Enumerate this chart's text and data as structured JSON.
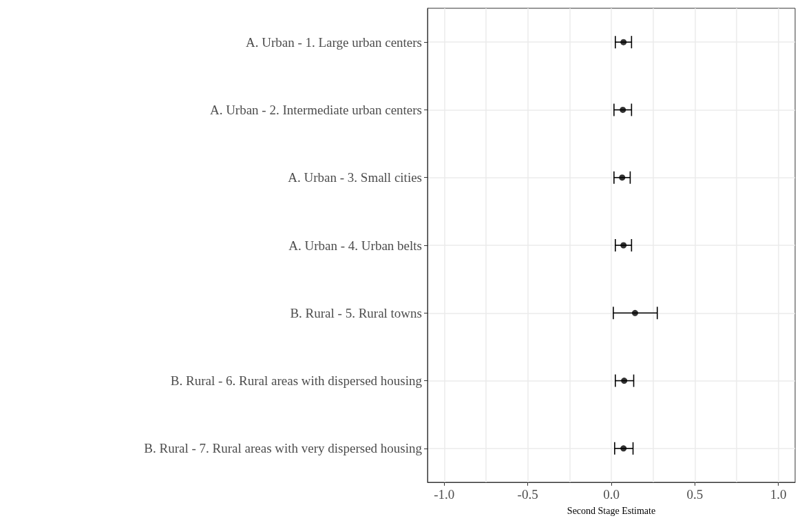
{
  "chart_data": {
    "type": "scatter",
    "xlabel": "Second Stage Estimate",
    "categories": [
      "A. Urban - 1. Large urban centers",
      "A. Urban - 2. Intermediate urban centers",
      "A. Urban - 3. Small cities",
      "A. Urban - 4. Urban belts",
      "B. Rural - 5. Rural towns",
      "B. Rural - 6. Rural areas with dispersed housing",
      "B. Rural - 7. Rural areas with very dispersed housing"
    ],
    "orientation": "horizontal",
    "values": [
      0.073,
      0.069,
      0.065,
      0.073,
      0.142,
      0.077,
      0.073
    ],
    "errors": [
      [
        0.024,
        0.121
      ],
      [
        0.016,
        0.121
      ],
      [
        0.016,
        0.113
      ],
      [
        0.024,
        0.121
      ],
      [
        0.012,
        0.275
      ],
      [
        0.024,
        0.134
      ],
      [
        0.02,
        0.13
      ]
    ],
    "color": "#000000",
    "marker": "circle",
    "xlim": [
      -1.1,
      1.1
    ],
    "xticks": [
      {
        "value": -1,
        "label": "-1.0"
      },
      -0.5,
      {
        "value": 0,
        "label": "0.0"
      },
      0.5,
      {
        "value": 1,
        "label": "1.0"
      }
    ],
    "grid": true
  }
}
